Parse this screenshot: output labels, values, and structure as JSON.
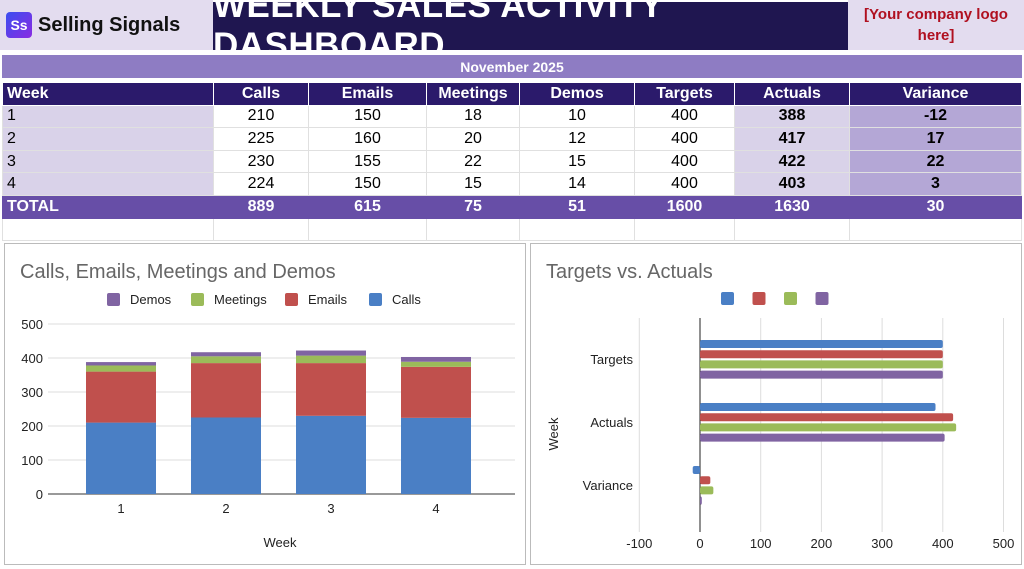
{
  "brand": {
    "logo_mark": "Ss",
    "name": "Selling Signals"
  },
  "title": "WEEKLY SALES ACTIVITY DASHBOARD",
  "company_logo_placeholder": "[Your company logo here]",
  "month": "November 2025",
  "table": {
    "headers": [
      "Week",
      "Calls",
      "Emails",
      "Meetings",
      "Demos",
      "Targets",
      "Actuals",
      "Variance"
    ],
    "rows": [
      [
        "1",
        "210",
        "150",
        "18",
        "10",
        "400",
        "388",
        "-12"
      ],
      [
        "2",
        "225",
        "160",
        "20",
        "12",
        "400",
        "417",
        "17"
      ],
      [
        "3",
        "230",
        "155",
        "22",
        "15",
        "400",
        "422",
        "22"
      ],
      [
        "4",
        "224",
        "150",
        "15",
        "14",
        "400",
        "403",
        "3"
      ]
    ],
    "total": [
      "TOTAL",
      "889",
      "615",
      "75",
      "51",
      "1600",
      "1630",
      "30"
    ]
  },
  "colors": {
    "blue": "#4a7fc5",
    "red": "#c0504d",
    "green": "#9bbb59",
    "purple": "#8064a2"
  },
  "chart_data": [
    {
      "type": "bar",
      "stacked": true,
      "title": "Calls, Emails, Meetings and Demos",
      "xlabel": "Week",
      "ylabel": "",
      "categories": [
        "1",
        "2",
        "3",
        "4"
      ],
      "ylim": [
        0,
        500
      ],
      "yticks": [
        0,
        100,
        200,
        300,
        400,
        500
      ],
      "legend": "top",
      "series": [
        {
          "name": "Calls",
          "values": [
            210,
            225,
            230,
            224
          ],
          "color": "#4a7fc5"
        },
        {
          "name": "Emails",
          "values": [
            150,
            160,
            155,
            150
          ],
          "color": "#c0504d"
        },
        {
          "name": "Meetings",
          "values": [
            18,
            20,
            22,
            15
          ],
          "color": "#9bbb59"
        },
        {
          "name": "Demos",
          "values": [
            10,
            12,
            15,
            14
          ],
          "color": "#8064a2"
        }
      ],
      "legend_order": [
        "Demos",
        "Meetings",
        "Emails",
        "Calls"
      ]
    },
    {
      "type": "bar",
      "orientation": "horizontal",
      "title": "Targets vs. Actuals",
      "ylabel": "Week",
      "xlabel": "",
      "categories": [
        "Targets",
        "Actuals",
        "Variance"
      ],
      "xlim": [
        -100,
        500
      ],
      "xticks": [
        -100,
        0,
        100,
        200,
        300,
        400,
        500
      ],
      "grid": true,
      "legend": "top",
      "series": [
        {
          "values": [
            400,
            388,
            -12
          ],
          "color": "#4a7fc5"
        },
        {
          "values": [
            400,
            417,
            17
          ],
          "color": "#c0504d"
        },
        {
          "values": [
            400,
            422,
            22
          ],
          "color": "#9bbb59"
        },
        {
          "values": [
            400,
            403,
            3
          ],
          "color": "#8064a2"
        }
      ]
    }
  ]
}
